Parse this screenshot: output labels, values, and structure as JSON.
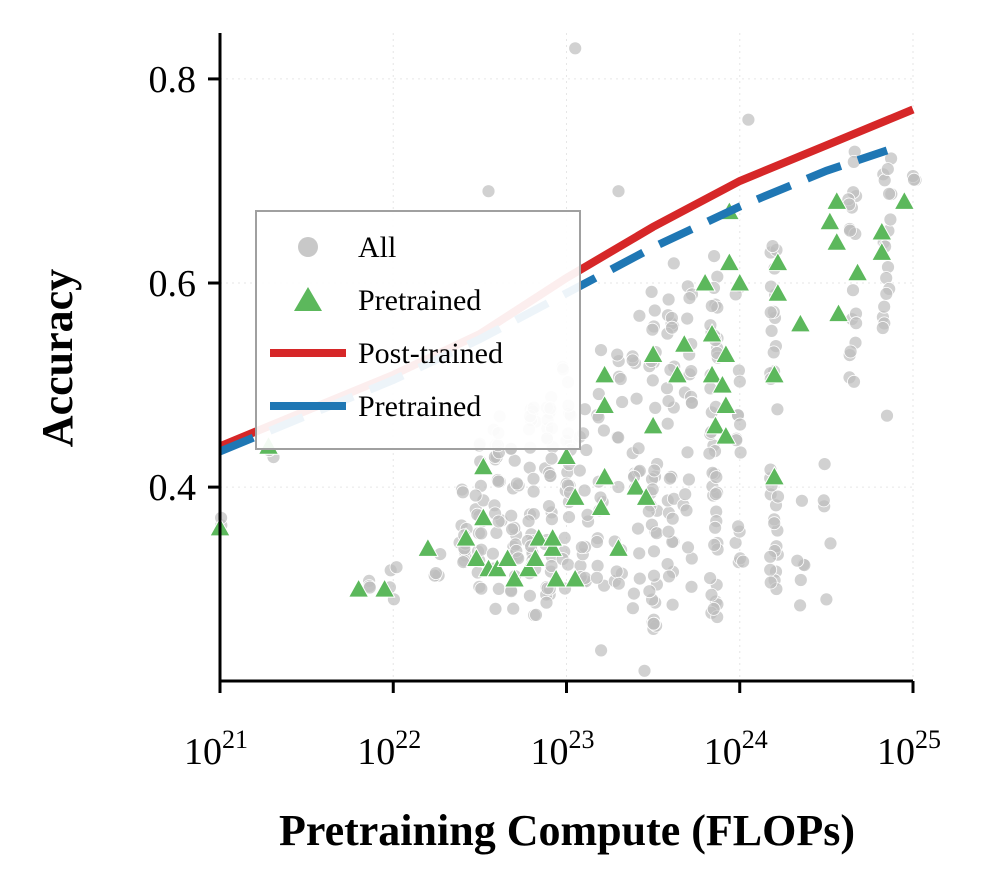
{
  "chart_data": {
    "type": "scatter",
    "title": "",
    "xlabel": "Pretraining Compute (FLOPs)",
    "ylabel": "Accuracy",
    "xscale": "log",
    "xlim": [
      1e+21,
      1e+25
    ],
    "ylim": [
      0.21,
      0.845
    ],
    "x_ticks": [
      {
        "base": "10",
        "exp": "21",
        "value": 1e+21
      },
      {
        "base": "10",
        "exp": "22",
        "value": 1e+22
      },
      {
        "base": "10",
        "exp": "23",
        "value": 1e+23
      },
      {
        "base": "10",
        "exp": "24",
        "value": 1e+24
      },
      {
        "base": "10",
        "exp": "25",
        "value": 1e+25
      }
    ],
    "y_ticks": [
      {
        "label": "0.4",
        "value": 0.4
      },
      {
        "label": "0.6",
        "value": 0.6
      },
      {
        "label": "0.8",
        "value": 0.8
      }
    ],
    "grid": true,
    "legend": {
      "position": "center-left",
      "entries": [
        {
          "label": "All",
          "marker": "circle",
          "color": "#c8c8c8"
        },
        {
          "label": "Pretrained",
          "marker": "triangle",
          "color": "#5cb85c"
        },
        {
          "label": "Post-trained",
          "marker": "line",
          "color": "#d62728"
        },
        {
          "label": "Pretrained",
          "marker": "dashed-line",
          "color": "#1f77b4"
        }
      ]
    },
    "series": [
      {
        "name": "All",
        "kind": "scatter",
        "marker": "circle",
        "color": "#bdbdbd",
        "columns": [
          {
            "log_x": 21.0,
            "y_min": 0.36,
            "y_max": 0.37,
            "n": 2
          },
          {
            "log_x": 21.3,
            "y_min": 0.41,
            "y_max": 0.44,
            "n": 2
          },
          {
            "log_x": 21.85,
            "y_min": 0.3,
            "y_max": 0.31,
            "n": 3
          },
          {
            "log_x": 22.0,
            "y_min": 0.28,
            "y_max": 0.33,
            "n": 4
          },
          {
            "log_x": 22.25,
            "y_min": 0.3,
            "y_max": 0.34,
            "n": 4
          },
          {
            "log_x": 22.4,
            "y_min": 0.32,
            "y_max": 0.41,
            "n": 12
          },
          {
            "log_x": 22.5,
            "y_min": 0.3,
            "y_max": 0.45,
            "n": 18
          },
          {
            "log_x": 22.6,
            "y_min": 0.28,
            "y_max": 0.47,
            "n": 22
          },
          {
            "log_x": 22.7,
            "y_min": 0.28,
            "y_max": 0.46,
            "n": 20
          },
          {
            "log_x": 22.8,
            "y_min": 0.27,
            "y_max": 0.48,
            "n": 26
          },
          {
            "log_x": 22.9,
            "y_min": 0.28,
            "y_max": 0.5,
            "n": 30
          },
          {
            "log_x": 23.0,
            "y_min": 0.3,
            "y_max": 0.52,
            "n": 24
          },
          {
            "log_x": 23.1,
            "y_min": 0.3,
            "y_max": 0.48,
            "n": 16
          },
          {
            "log_x": 23.2,
            "y_min": 0.28,
            "y_max": 0.56,
            "n": 14
          },
          {
            "log_x": 23.3,
            "y_min": 0.3,
            "y_max": 0.54,
            "n": 14
          },
          {
            "log_x": 23.4,
            "y_min": 0.28,
            "y_max": 0.58,
            "n": 18
          },
          {
            "log_x": 23.5,
            "y_min": 0.26,
            "y_max": 0.6,
            "n": 34
          },
          {
            "log_x": 23.6,
            "y_min": 0.28,
            "y_max": 0.62,
            "n": 28
          },
          {
            "log_x": 23.7,
            "y_min": 0.3,
            "y_max": 0.6,
            "n": 20
          },
          {
            "log_x": 23.85,
            "y_min": 0.27,
            "y_max": 0.64,
            "n": 44
          },
          {
            "log_x": 24.0,
            "y_min": 0.28,
            "y_max": 0.62,
            "n": 16
          },
          {
            "log_x": 24.2,
            "y_min": 0.3,
            "y_max": 0.68,
            "n": 34
          },
          {
            "log_x": 24.35,
            "y_min": 0.28,
            "y_max": 0.4,
            "n": 6
          },
          {
            "log_x": 24.5,
            "y_min": 0.27,
            "y_max": 0.48,
            "n": 4
          },
          {
            "log_x": 24.65,
            "y_min": 0.5,
            "y_max": 0.74,
            "n": 20
          },
          {
            "log_x": 24.85,
            "y_min": 0.55,
            "y_max": 0.73,
            "n": 18
          },
          {
            "log_x": 25.0,
            "y_min": 0.7,
            "y_max": 0.72,
            "n": 3
          }
        ],
        "outliers": [
          {
            "log_x": 23.05,
            "y": 0.83
          },
          {
            "log_x": 22.55,
            "y": 0.69
          },
          {
            "log_x": 23.45,
            "y": 0.22
          },
          {
            "log_x": 23.2,
            "y": 0.24
          },
          {
            "log_x": 24.05,
            "y": 0.76
          },
          {
            "log_x": 24.85,
            "y": 0.47
          },
          {
            "log_x": 24.5,
            "y": 0.29
          },
          {
            "log_x": 23.3,
            "y": 0.69
          }
        ]
      },
      {
        "name": "Pretrained",
        "kind": "scatter",
        "marker": "triangle",
        "color": "#5cb85c",
        "points": [
          {
            "log_x": 21.0,
            "y": 0.36
          },
          {
            "log_x": 21.28,
            "y": 0.44
          },
          {
            "log_x": 21.8,
            "y": 0.3
          },
          {
            "log_x": 21.95,
            "y": 0.3
          },
          {
            "log_x": 22.2,
            "y": 0.34
          },
          {
            "log_x": 22.42,
            "y": 0.35
          },
          {
            "log_x": 22.48,
            "y": 0.33
          },
          {
            "log_x": 22.52,
            "y": 0.37
          },
          {
            "log_x": 22.55,
            "y": 0.32
          },
          {
            "log_x": 22.52,
            "y": 0.42
          },
          {
            "log_x": 22.6,
            "y": 0.32
          },
          {
            "log_x": 22.66,
            "y": 0.33
          },
          {
            "log_x": 22.7,
            "y": 0.31
          },
          {
            "log_x": 22.78,
            "y": 0.32
          },
          {
            "log_x": 22.82,
            "y": 0.33
          },
          {
            "log_x": 22.84,
            "y": 0.35
          },
          {
            "log_x": 22.92,
            "y": 0.34
          },
          {
            "log_x": 22.92,
            "y": 0.35
          },
          {
            "log_x": 22.94,
            "y": 0.31
          },
          {
            "log_x": 23.05,
            "y": 0.31
          },
          {
            "log_x": 23.05,
            "y": 0.39
          },
          {
            "log_x": 23.0,
            "y": 0.43
          },
          {
            "log_x": 23.2,
            "y": 0.38
          },
          {
            "log_x": 23.22,
            "y": 0.41
          },
          {
            "log_x": 23.22,
            "y": 0.48
          },
          {
            "log_x": 23.22,
            "y": 0.51
          },
          {
            "log_x": 23.3,
            "y": 0.34
          },
          {
            "log_x": 23.4,
            "y": 0.4
          },
          {
            "log_x": 23.46,
            "y": 0.39
          },
          {
            "log_x": 23.5,
            "y": 0.46
          },
          {
            "log_x": 23.5,
            "y": 0.53
          },
          {
            "log_x": 23.64,
            "y": 0.51
          },
          {
            "log_x": 23.68,
            "y": 0.54
          },
          {
            "log_x": 23.8,
            "y": 0.6
          },
          {
            "log_x": 23.84,
            "y": 0.51
          },
          {
            "log_x": 23.84,
            "y": 0.55
          },
          {
            "log_x": 23.86,
            "y": 0.46
          },
          {
            "log_x": 23.9,
            "y": 0.5
          },
          {
            "log_x": 23.92,
            "y": 0.45
          },
          {
            "log_x": 23.92,
            "y": 0.48
          },
          {
            "log_x": 23.92,
            "y": 0.53
          },
          {
            "log_x": 23.94,
            "y": 0.62
          },
          {
            "log_x": 23.94,
            "y": 0.67
          },
          {
            "log_x": 24.0,
            "y": 0.6
          },
          {
            "log_x": 24.2,
            "y": 0.51
          },
          {
            "log_x": 24.2,
            "y": 0.41
          },
          {
            "log_x": 24.22,
            "y": 0.59
          },
          {
            "log_x": 24.22,
            "y": 0.62
          },
          {
            "log_x": 24.35,
            "y": 0.56
          },
          {
            "log_x": 24.52,
            "y": 0.66
          },
          {
            "log_x": 24.56,
            "y": 0.64
          },
          {
            "log_x": 24.56,
            "y": 0.68
          },
          {
            "log_x": 24.57,
            "y": 0.57
          },
          {
            "log_x": 24.68,
            "y": 0.61
          },
          {
            "log_x": 24.82,
            "y": 0.63
          },
          {
            "log_x": 24.82,
            "y": 0.65
          },
          {
            "log_x": 24.95,
            "y": 0.68
          }
        ]
      },
      {
        "name": "Post-trained",
        "kind": "line",
        "style": "solid",
        "color": "#d62728",
        "points": [
          {
            "log_x": 21.0,
            "y": 0.44
          },
          {
            "log_x": 21.5,
            "y": 0.475
          },
          {
            "log_x": 22.0,
            "y": 0.51
          },
          {
            "log_x": 22.5,
            "y": 0.55
          },
          {
            "log_x": 23.0,
            "y": 0.605
          },
          {
            "log_x": 23.5,
            "y": 0.655
          },
          {
            "log_x": 24.0,
            "y": 0.7
          },
          {
            "log_x": 24.5,
            "y": 0.735
          },
          {
            "log_x": 25.0,
            "y": 0.77
          }
        ]
      },
      {
        "name": "Pretrained",
        "kind": "line",
        "style": "dashed",
        "color": "#1f77b4",
        "points": [
          {
            "log_x": 21.0,
            "y": 0.435
          },
          {
            "log_x": 21.5,
            "y": 0.47
          },
          {
            "log_x": 22.0,
            "y": 0.505
          },
          {
            "log_x": 22.5,
            "y": 0.545
          },
          {
            "log_x": 23.0,
            "y": 0.59
          },
          {
            "log_x": 23.5,
            "y": 0.635
          },
          {
            "log_x": 24.0,
            "y": 0.675
          },
          {
            "log_x": 24.5,
            "y": 0.71
          },
          {
            "log_x": 24.85,
            "y": 0.73
          }
        ]
      }
    ]
  }
}
